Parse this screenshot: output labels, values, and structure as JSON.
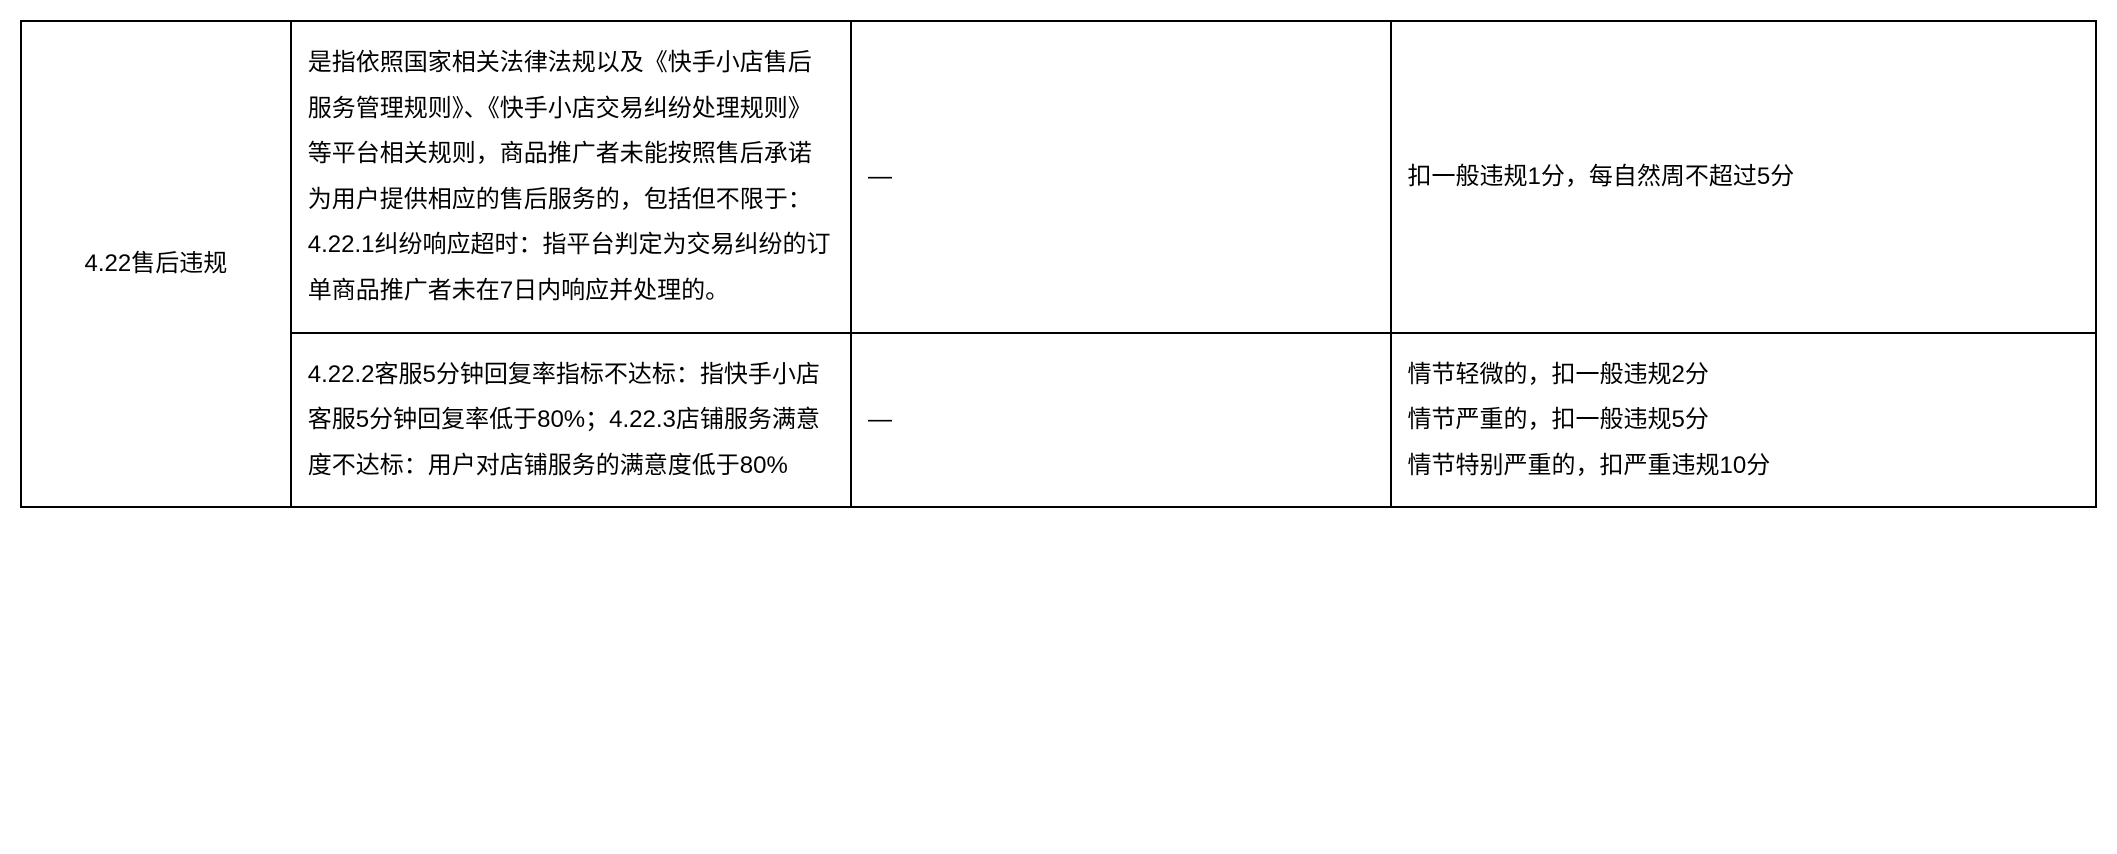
{
  "table": {
    "border_color": "#000000",
    "border_width": 2,
    "background_color": "#ffffff",
    "text_color": "#000000",
    "font_size": 24,
    "line_height": 1.9,
    "columns": {
      "col1_width_pct": 13,
      "col2_width_pct": 27,
      "col3_width_pct": 26,
      "col4_width_pct": 34
    },
    "rows": [
      {
        "category": "4.22售后违规",
        "rowspan": 2,
        "description": "是指依照国家相关法律法规以及《快手小店售后服务管理规则》、《快手小店交易纠纷处理规则》等平台相关规则，商品推广者未能按照售后承诺为用户提供相应的售后服务的，包括但不限于：4.22.1纠纷响应超时：指平台判定为交易纠纷的订单商品推广者未在7日内响应并处理的。",
        "col3": "—",
        "penalty": "扣一般违规1分，每自然周不超过5分"
      },
      {
        "description": "4.22.2客服5分钟回复率指标不达标：指快手小店客服5分钟回复率低于80%；4.22.3店铺服务满意度不达标：用户对店铺服务的满意度低于80%",
        "col3": "—",
        "penalty_lines": [
          "情节轻微的，扣一般违规2分",
          "情节严重的，扣一般违规5分",
          "情节特别严重的，扣严重违规10分"
        ]
      }
    ]
  }
}
